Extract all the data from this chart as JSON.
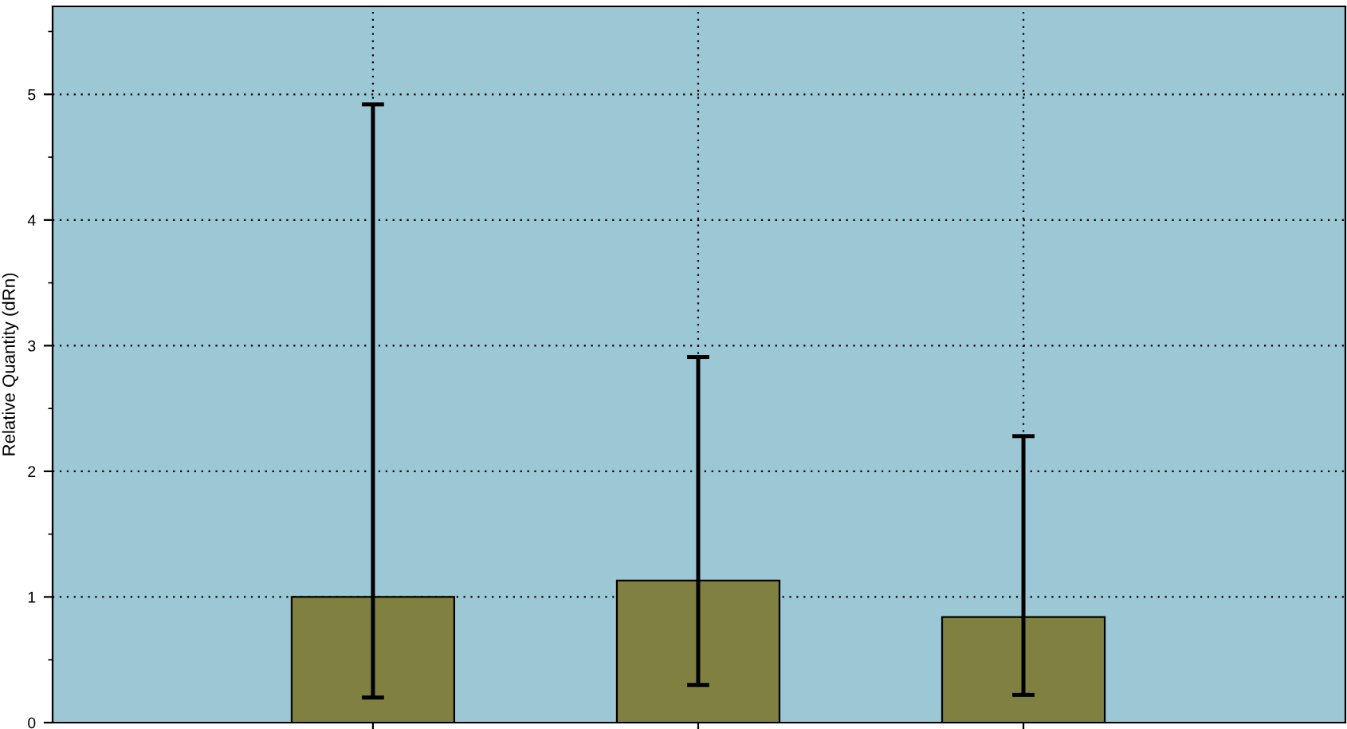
{
  "chart_data": {
    "type": "bar",
    "ylabel": "Relative Quantity (dRn)",
    "categories": [
      null,
      null,
      null
    ],
    "values": [
      1.0,
      1.13,
      0.84
    ],
    "errors": [
      [
        0.2,
        4.92
      ],
      [
        0.3,
        2.91
      ],
      [
        0.22,
        2.28
      ]
    ],
    "color": "#808040",
    "ylim": [
      0,
      5.7
    ],
    "yticks": [
      0,
      1,
      2,
      3,
      4,
      5
    ],
    "grid": true,
    "tick_labels": "y"
  }
}
